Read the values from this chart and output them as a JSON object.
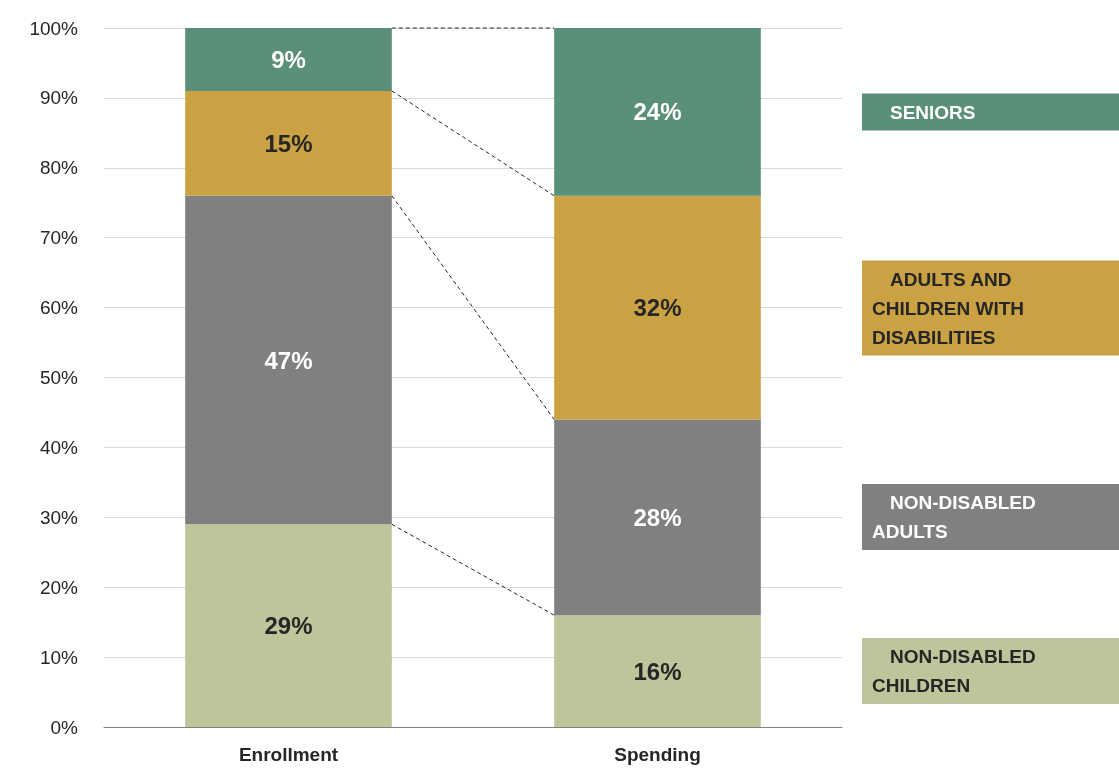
{
  "chart_data": {
    "type": "bar",
    "stacked": true,
    "categories": [
      "Enrollment",
      "Spending"
    ],
    "series": [
      {
        "name": "NON-DISABLED CHILDREN",
        "color": "#bfc49b",
        "values": [
          29,
          16
        ],
        "value_labels": [
          "29%",
          "16%"
        ]
      },
      {
        "name": "NON-DISABLED ADULTS",
        "color": "#808080",
        "values": [
          47,
          28
        ],
        "value_labels": [
          "47%",
          "28%"
        ]
      },
      {
        "name": "ADULTS AND CHILDREN WITH DISABILITIES",
        "color": "#cba243",
        "values": [
          15,
          32
        ],
        "value_labels": [
          "15%",
          "32%"
        ]
      },
      {
        "name": "SENIORS",
        "color": "#5a8f79",
        "values": [
          9,
          24
        ],
        "value_labels": [
          "9%",
          "24%"
        ]
      }
    ],
    "ylim": [
      0,
      100
    ],
    "yticks": [
      {
        "value": 0,
        "label": "0%"
      },
      {
        "value": 10,
        "label": "10%"
      },
      {
        "value": 20,
        "label": "20%"
      },
      {
        "value": 30,
        "label": "30%"
      },
      {
        "value": 40,
        "label": "40%"
      },
      {
        "value": 50,
        "label": "50%"
      },
      {
        "value": 60,
        "label": "60%"
      },
      {
        "value": 70,
        "label": "70%"
      },
      {
        "value": 80,
        "label": "80%"
      },
      {
        "value": 90,
        "label": "90%"
      },
      {
        "value": 100,
        "label": "100%"
      }
    ],
    "grid": "y",
    "legend": "right"
  }
}
